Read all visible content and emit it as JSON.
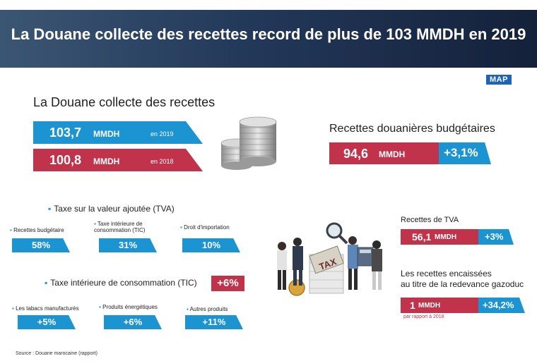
{
  "header": {
    "title": "La Douane collecte des recettes record de plus de 103 MMDH en 2019"
  },
  "logo": {
    "text": "MAP"
  },
  "collect": {
    "heading": "La Douane collecte des recettes",
    "rows": [
      {
        "value": "103,7",
        "unit": "MMDH",
        "year": "en 2019"
      },
      {
        "value": "100,8",
        "unit": "MMDH",
        "year": "en 2018"
      }
    ]
  },
  "budget": {
    "heading": "Recettes douanières budgétaires",
    "value": "94,6",
    "unit": "MMDH",
    "change": "+3,1%"
  },
  "tva": {
    "title": "Taxe sur la valeur ajoutée (TVA)",
    "items": [
      {
        "label": "Recettes budgétaire",
        "value": "58%"
      },
      {
        "label": "Taxe intérieure de consommation (TIC)",
        "value": "31%"
      },
      {
        "label": "Droit d'importation",
        "value": "10%"
      }
    ]
  },
  "tic": {
    "title": "Taxe intérieure de consommation (TIC)",
    "change": "+6%",
    "items": [
      {
        "label": "Les tabacs manufacturés",
        "value": "+5%"
      },
      {
        "label": "Produits énergétiques",
        "value": "+6%"
      },
      {
        "label": "Autres produits",
        "value": "+11%"
      }
    ]
  },
  "tva_receipts": {
    "heading": "Recettes de TVA",
    "value": "56,1",
    "unit": "MMDH",
    "change": "+3%"
  },
  "gas": {
    "heading_line1": "Les recettes encaissées",
    "heading_line2": "au titre de la redevance gazoduc",
    "value": "1",
    "unit": "MMDH",
    "change": "+34,2%",
    "note": "par rapport à 2018"
  },
  "illustration": {
    "tax_label": "TAX"
  },
  "source": "Source : Douane marocaine (rapport)",
  "colors": {
    "blue": "#1d94d2",
    "red": "#c0334a",
    "navy": "#23395a"
  }
}
